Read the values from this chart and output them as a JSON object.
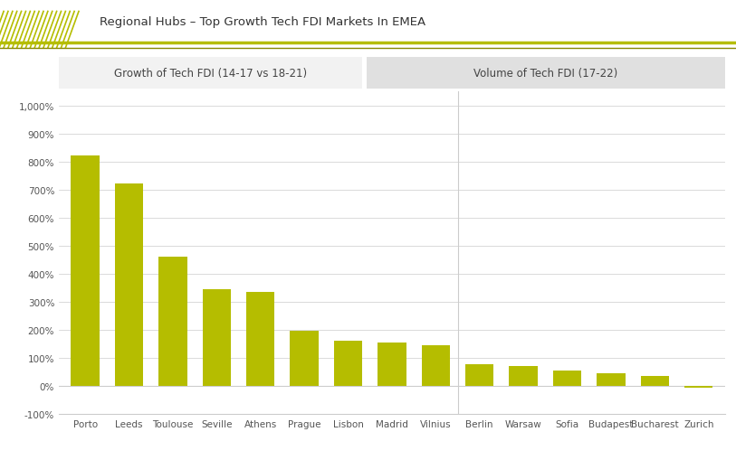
{
  "title": "Regional Hubs – Top Growth Tech FDI Markets In EMEA",
  "header_left": "Growth of Tech FDI (14-17 vs 18-21)",
  "header_right": "Volume of Tech FDI (17-22)",
  "categories": [
    "Porto",
    "Leeds",
    "Toulouse",
    "Seville",
    "Athens",
    "Prague",
    "Lisbon",
    "Madrid",
    "Vilnius",
    "Berlin",
    "Warsaw",
    "Sofia",
    "Budapest",
    "Bucharest",
    "Zurich"
  ],
  "values": [
    820,
    720,
    460,
    345,
    335,
    195,
    160,
    155,
    145,
    78,
    70,
    55,
    45,
    35,
    -5
  ],
  "bar_color": "#b5bd00",
  "bg_color": "#ffffff",
  "header_left_bg": "#f2f2f2",
  "header_right_bg": "#e0e0e0",
  "ylim": [
    -100,
    1050
  ],
  "yticks": [
    -100,
    0,
    100,
    200,
    300,
    400,
    500,
    600,
    700,
    800,
    900,
    1000
  ],
  "grid_color": "#cccccc",
  "text_color": "#555555",
  "hatch_color": "#b5bd00",
  "title_line_color1": "#b5bd00",
  "title_line_color2": "#888800",
  "split_after_index": 8
}
